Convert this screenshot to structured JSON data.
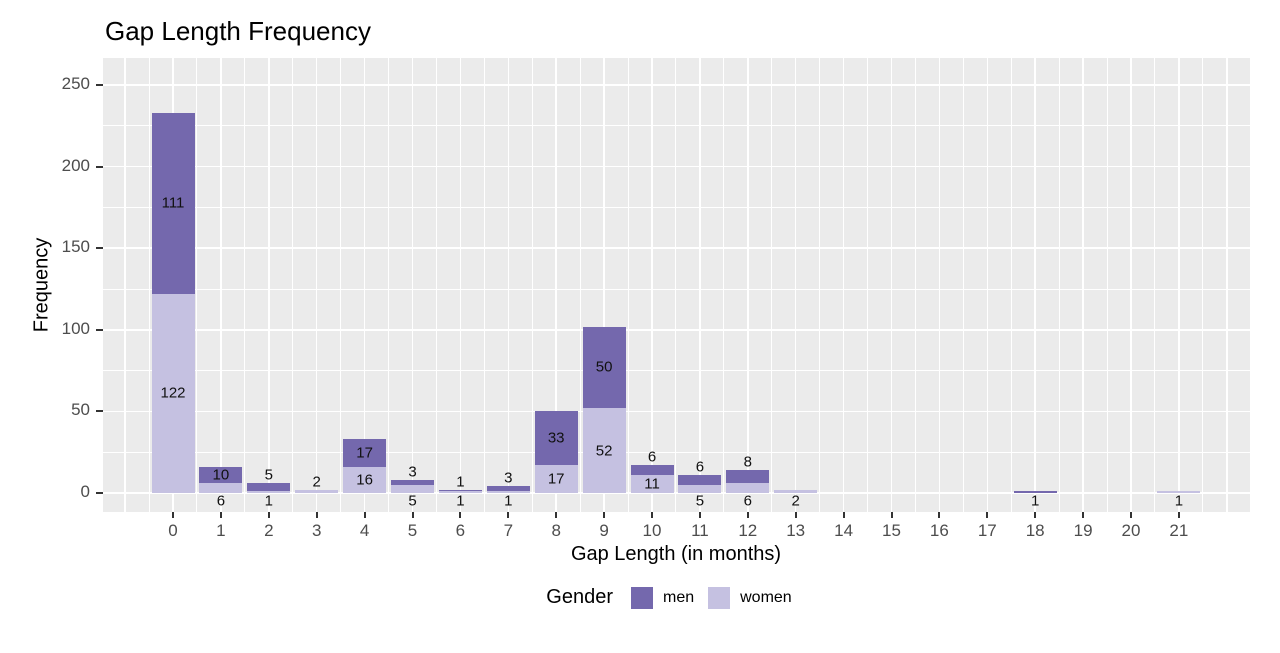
{
  "title": "Gap Length Frequency",
  "y_axis": {
    "label": "Frequency",
    "ticks": [
      "0",
      "50",
      "100",
      "150",
      "200",
      "250"
    ]
  },
  "x_axis": {
    "label": "Gap Length (in months)",
    "ticks": [
      "0",
      "1",
      "2",
      "3",
      "4",
      "5",
      "6",
      "7",
      "8",
      "9",
      "10",
      "11",
      "12",
      "13",
      "14",
      "15",
      "16",
      "17",
      "18",
      "19",
      "20",
      "21"
    ]
  },
  "legend": {
    "title": "Gender",
    "items": [
      {
        "label": "men",
        "color": "#7468ad"
      },
      {
        "label": "women",
        "color": "#c5c1e1"
      }
    ]
  },
  "colors": {
    "panel_background": "#ebebeb",
    "gridline": "#ffffff",
    "tick_text": "#4d4d4d",
    "axis_text": "#000000",
    "men": "#7468ad",
    "women": "#c5c1e1"
  },
  "chart_data": {
    "type": "bar",
    "stacked": true,
    "title": "Gap Length Frequency",
    "xlabel": "Gap Length (in months)",
    "ylabel": "Frequency",
    "ylim": [
      0,
      250
    ],
    "grid": true,
    "legend_position": "bottom",
    "legend_title": "Gender",
    "categories": [
      0,
      1,
      2,
      3,
      4,
      5,
      6,
      7,
      8,
      9,
      10,
      11,
      12,
      13,
      14,
      15,
      16,
      17,
      18,
      19,
      20,
      21
    ],
    "series": [
      {
        "name": "men",
        "color": "#7468ad",
        "values": [
          111,
          10,
          5,
          0,
          17,
          3,
          1,
          3,
          33,
          50,
          6,
          6,
          8,
          0,
          0,
          0,
          0,
          0,
          1,
          0,
          0,
          0
        ],
        "label_pos": [
          "in",
          "in",
          "above",
          null,
          "in",
          "above",
          "above",
          "above",
          "in",
          "in",
          "above",
          "above",
          "above",
          null,
          null,
          null,
          null,
          null,
          "below",
          null,
          null,
          null
        ]
      },
      {
        "name": "women",
        "color": "#c5c1e1",
        "values": [
          122,
          6,
          1,
          2,
          16,
          5,
          1,
          1,
          17,
          52,
          11,
          5,
          6,
          2,
          0,
          0,
          0,
          0,
          0,
          0,
          0,
          1
        ],
        "label_pos": [
          "in",
          "below",
          "below",
          "above",
          "in",
          "below",
          "below",
          "below",
          "in",
          "in",
          "in",
          "below",
          "below",
          "below",
          null,
          null,
          null,
          null,
          null,
          null,
          null,
          "below"
        ]
      }
    ]
  }
}
